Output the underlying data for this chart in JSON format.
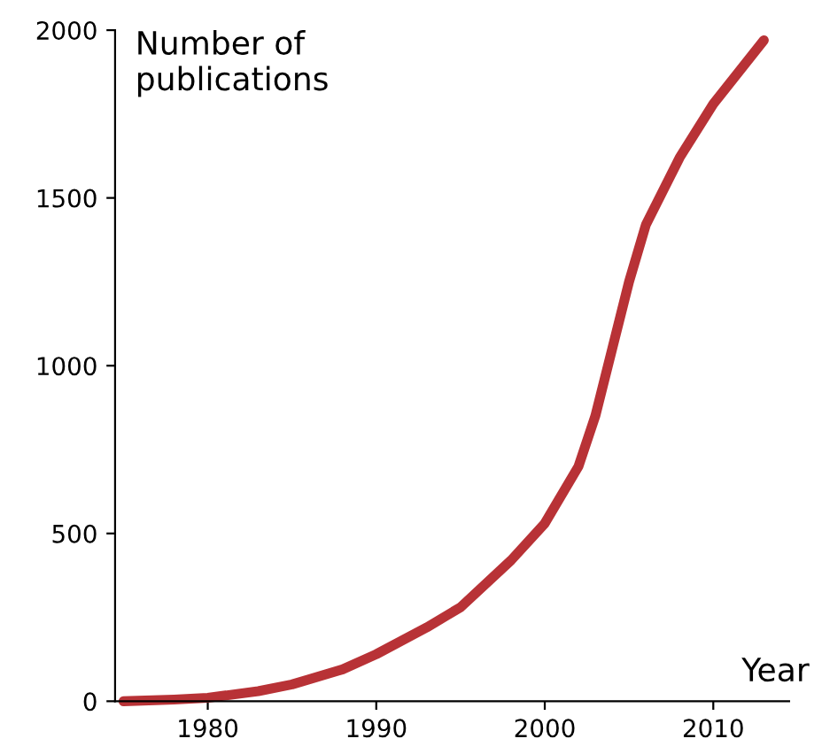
{
  "chart_data": {
    "type": "line",
    "xlabel": "Year",
    "ylabel": "Number of\npublications",
    "x": [
      1975,
      1978,
      1980,
      1983,
      1985,
      1988,
      1990,
      1993,
      1995,
      1998,
      2000,
      2002,
      2003,
      2004,
      2005,
      2006,
      2008,
      2010,
      2013
    ],
    "series": [
      {
        "color": "#b83236",
        "values": [
          0,
          5,
          10,
          30,
          50,
          95,
          140,
          220,
          280,
          420,
          530,
          700,
          850,
          1050,
          1250,
          1420,
          1620,
          1780,
          1970
        ]
      }
    ],
    "xlim": [
      1974.5,
      2014.5
    ],
    "ylim": [
      0,
      2000
    ],
    "xticks": [
      1980,
      1990,
      2000,
      2010
    ],
    "yticks": [
      0,
      500,
      1000,
      1500,
      2000
    ],
    "grid": false,
    "legend": false,
    "marker": "none",
    "line_style": "solid"
  }
}
